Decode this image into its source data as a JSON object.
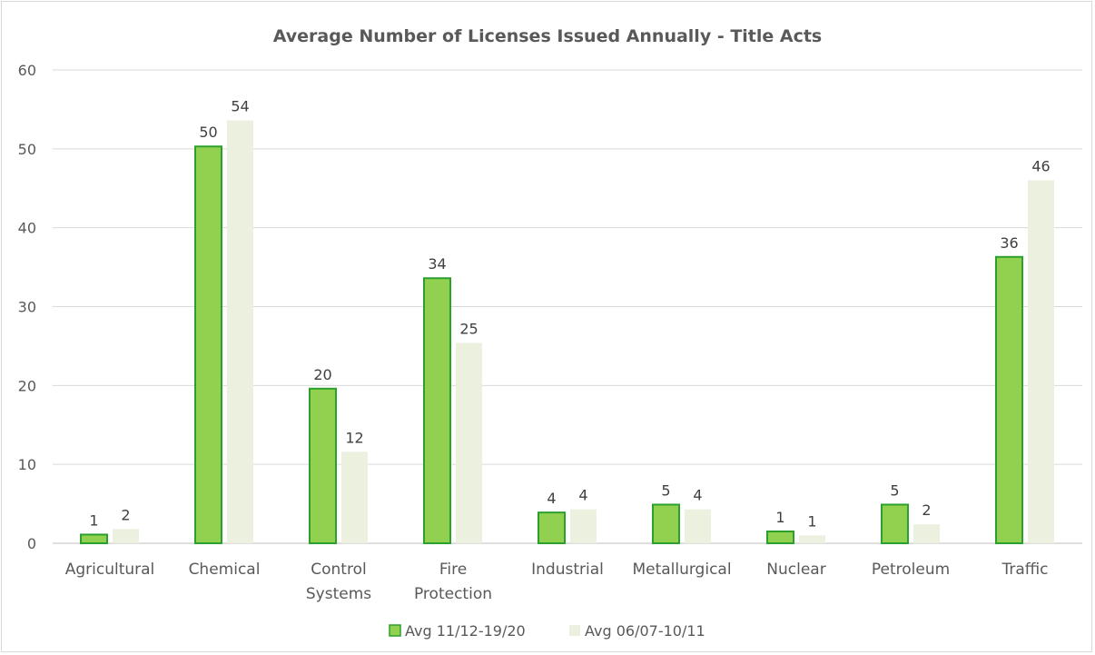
{
  "chart_data": {
    "type": "bar",
    "title": "Average Number of Licenses Issued Annually - Title Acts",
    "xlabel": "",
    "ylabel": "",
    "ylim": [
      0,
      60
    ],
    "yticks": [
      0,
      10,
      20,
      30,
      40,
      50,
      60
    ],
    "grid": true,
    "legend_position": "bottom",
    "categories": [
      [
        "Agricultural"
      ],
      [
        "Chemical"
      ],
      [
        "Control",
        "Systems"
      ],
      [
        "Fire",
        "Protection"
      ],
      [
        "Industrial"
      ],
      [
        "Metallurgical"
      ],
      [
        "Nuclear"
      ],
      [
        "Petroleum"
      ],
      [
        "Traffic"
      ]
    ],
    "series": [
      {
        "name": "Avg 11/12-19/20",
        "color": "#92d050",
        "border": "#2ca02c",
        "values": [
          1.1,
          50.3,
          19.6,
          33.6,
          3.9,
          4.9,
          1.5,
          4.9,
          36.3
        ],
        "labels": [
          "1",
          "50",
          "20",
          "34",
          "4",
          "5",
          "1",
          "5",
          "36"
        ]
      },
      {
        "name": "Avg 06/07-10/11",
        "color": "#ebf1de",
        "border": "#ebf1de",
        "values": [
          1.8,
          53.6,
          11.6,
          25.4,
          4.3,
          4.3,
          1.0,
          2.4,
          46.0
        ],
        "labels": [
          "2",
          "54",
          "12",
          "25",
          "4",
          "4",
          "1",
          "2",
          "46"
        ]
      }
    ]
  }
}
